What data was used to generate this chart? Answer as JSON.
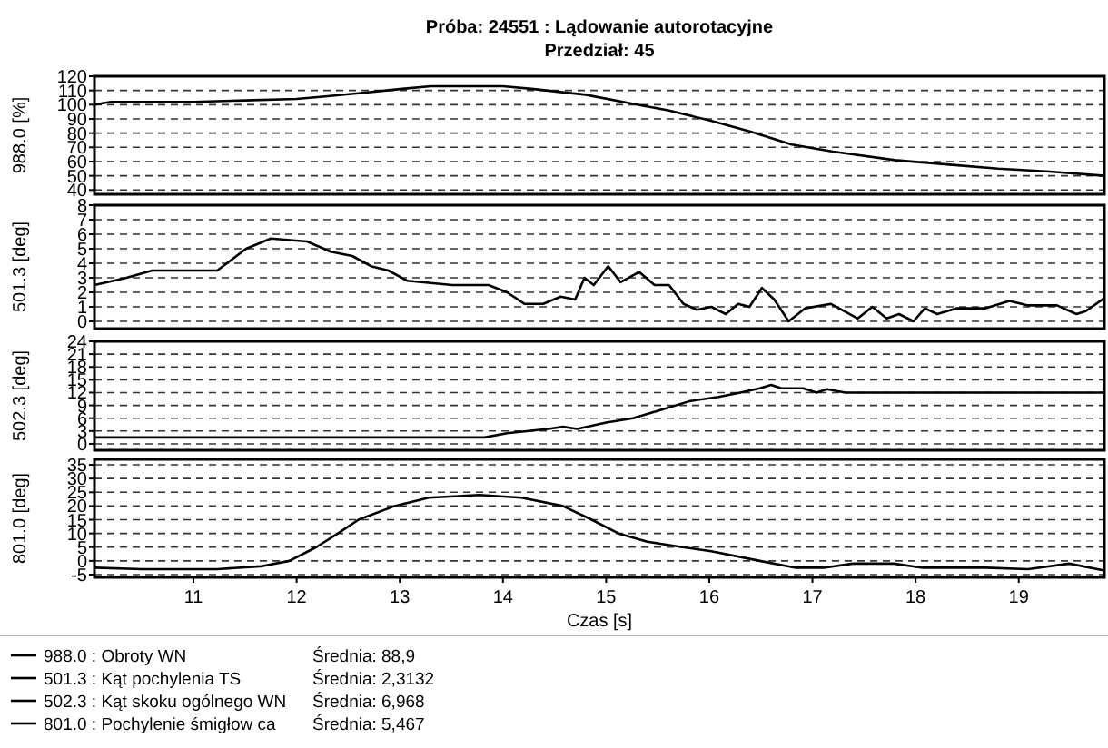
{
  "chart_data": [
    {
      "type": "line",
      "title": "Próba: 24551 : Lądowanie autorotacyjne",
      "subtitle": "Przedział: 45",
      "ylabel": "988.0 [%]",
      "xlim": [
        10.04,
        19.83
      ],
      "ylim": [
        37,
        120
      ],
      "yticks": [
        40,
        50,
        60,
        70,
        80,
        90,
        100,
        110,
        120
      ],
      "grid": "y",
      "legend": "bottom",
      "tick_labels": "y",
      "annotations": [
        "Średnia: 88,9"
      ],
      "series": [
        {
          "name": "988.0 : Obroty WN",
          "color": "#000000",
          "x": [
            10.04,
            10.2,
            11,
            11.5,
            12,
            12.3,
            12.6,
            13,
            13.3,
            14,
            14.3,
            14.8,
            15.3,
            15.6,
            16,
            16.4,
            16.8,
            17.2,
            17.8,
            18.3,
            18.8,
            19.3,
            19.83
          ],
          "values": [
            100,
            102,
            102,
            103,
            104,
            106,
            108,
            111,
            113,
            113,
            111,
            107,
            100,
            96,
            89,
            81,
            72,
            67,
            61,
            58,
            55,
            53,
            50
          ]
        }
      ]
    },
    {
      "type": "line",
      "ylabel": "501.3 [deg]",
      "xlim": [
        10.04,
        19.83
      ],
      "ylim": [
        -0.5,
        8
      ],
      "yticks": [
        0,
        1,
        2,
        3,
        4,
        5,
        6,
        7,
        8
      ],
      "grid": "y",
      "legend": "bottom",
      "tick_labels": "y",
      "annotations": [
        "Średnia: 2,3132"
      ],
      "series": [
        {
          "name": "501.3 : Kąt pochylenia TS",
          "color": "#000000",
          "x": [
            10.04,
            10.35,
            10.6,
            11.23,
            11.51,
            11.75,
            12.1,
            12.33,
            12.54,
            12.72,
            12.89,
            13.07,
            13.51,
            13.86,
            14.04,
            14.21,
            14.39,
            14.56,
            14.7,
            14.79,
            14.88,
            15.02,
            15.14,
            15.32,
            15.47,
            15.61,
            15.75,
            15.88,
            16.02,
            16.16,
            16.28,
            16.39,
            16.51,
            16.63,
            16.77,
            16.93,
            17.18,
            17.44,
            17.58,
            17.72,
            17.84,
            17.98,
            18.09,
            18.21,
            18.4,
            18.68,
            18.91,
            19.09,
            19.37,
            19.56,
            19.65,
            19.83
          ],
          "values": [
            2.5,
            3,
            3.5,
            3.5,
            5,
            5.7,
            5.5,
            4.8,
            4.5,
            3.8,
            3.5,
            2.8,
            2.5,
            2.5,
            2,
            1.2,
            1.2,
            1.7,
            1.5,
            3,
            2.5,
            3.8,
            2.7,
            3.4,
            2.5,
            2.5,
            1.2,
            0.8,
            1,
            0.5,
            1.2,
            1,
            2.3,
            1.5,
            0,
            0.9,
            1.2,
            0.2,
            1,
            0.2,
            0.5,
            0,
            0.9,
            0.5,
            0.9,
            0.9,
            1.4,
            1.1,
            1.1,
            0.5,
            0.7,
            1.6
          ]
        }
      ]
    },
    {
      "type": "line",
      "ylabel": "502.3 [deg]",
      "xlim": [
        10.04,
        19.83
      ],
      "ylim": [
        -1.5,
        24
      ],
      "yticks": [
        0,
        3,
        6,
        9,
        12,
        15,
        18,
        21,
        24
      ],
      "grid": "y",
      "legend": "bottom",
      "tick_labels": "y",
      "annotations": [
        "Średnia: 6,968"
      ],
      "series": [
        {
          "name": "502.3 : Kąt skoku ogólnego WN",
          "color": "#000000",
          "x": [
            10.04,
            13.82,
            14.04,
            14.44,
            14.58,
            14.72,
            15,
            15.26,
            15.54,
            15.81,
            16.09,
            16.3,
            16.49,
            16.6,
            16.7,
            16.91,
            17.04,
            17.14,
            17.32,
            19.83
          ],
          "values": [
            1.5,
            1.5,
            2.5,
            3.5,
            4,
            3.5,
            5,
            6,
            8,
            10,
            11,
            12,
            13,
            13.8,
            13,
            13,
            12,
            12.8,
            12,
            12
          ]
        }
      ]
    },
    {
      "type": "line",
      "ylabel": "801.0 [deg]",
      "xlabel": "Czas [s]",
      "xlim": [
        10.04,
        19.83
      ],
      "xticks": [
        11,
        12,
        13,
        14,
        15,
        16,
        17,
        18,
        19
      ],
      "ylim": [
        -6,
        37
      ],
      "yticks": [
        -5,
        0,
        5,
        10,
        15,
        20,
        25,
        30,
        35
      ],
      "grid": "y",
      "legend": "bottom",
      "annotations": [
        "Średnia: 5,467"
      ],
      "series": [
        {
          "name": "801.0 : Pochylenie śmigłow ca",
          "color": "#000000",
          "x": [
            10.04,
            10.5,
            11,
            11.23,
            11.65,
            11.93,
            12.19,
            12.4,
            12.6,
            12.95,
            13.28,
            13.77,
            14.18,
            14.58,
            14.86,
            15.12,
            15.4,
            15.74,
            16.02,
            16.49,
            16.84,
            17.11,
            17.39,
            17.79,
            18.07,
            18.68,
            19.09,
            19.49,
            19.83
          ],
          "values": [
            -2.5,
            -3,
            -3,
            -3,
            -2,
            0,
            5,
            10,
            15,
            20,
            23,
            24,
            23,
            20,
            15,
            10,
            7,
            5,
            3.5,
            0,
            -2.5,
            -2.5,
            -1,
            -1,
            -2.5,
            -2.5,
            -3,
            -1,
            -3.5
          ]
        }
      ]
    }
  ]
}
